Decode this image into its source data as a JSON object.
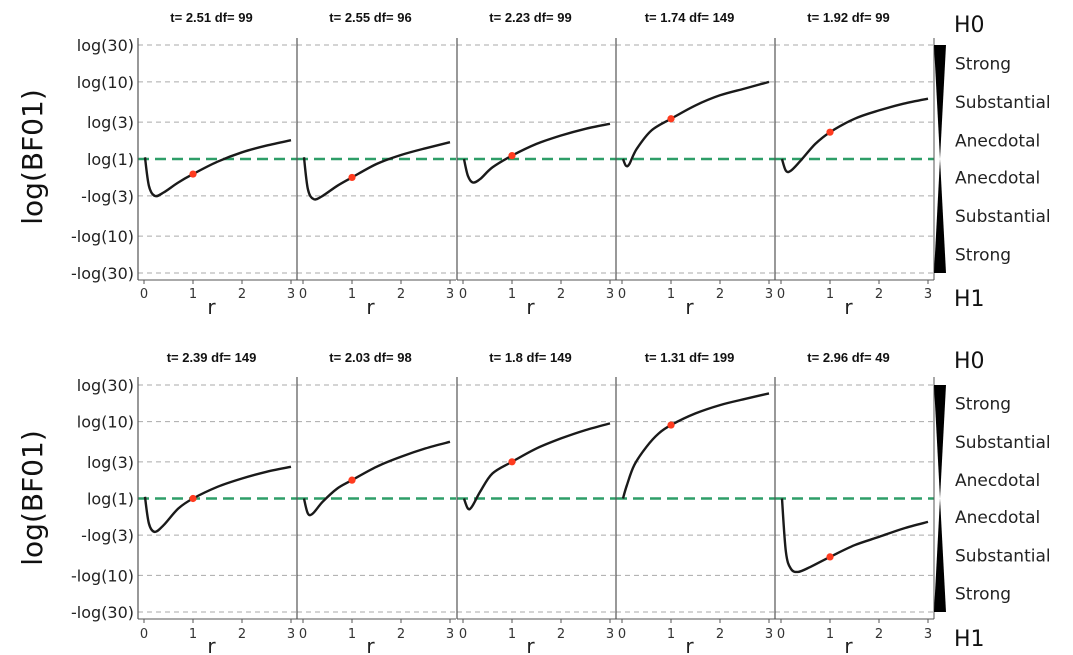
{
  "chart_data": [
    {
      "type": "line",
      "ylabel": "log(BF01)",
      "y_ticks": [
        "log(30)",
        "log(10)",
        "log(3)",
        "log(1)",
        "-log(3)",
        "-log(10)",
        "-log(30)"
      ],
      "x_ticks": [
        "0",
        "1",
        "2",
        "3"
      ],
      "xlim": [
        0,
        3
      ],
      "hypothesis_top": "H0",
      "hypothesis_bottom": "H1",
      "evidence_labels": [
        "Strong",
        "Substantial",
        "Anecdotal",
        "Anecdotal",
        "Substantial",
        "Strong"
      ],
      "panels": [
        {
          "title": "t= 2.51 df= 99",
          "xlabel": "r",
          "x": [
            0.02,
            0.1,
            0.22,
            0.4,
            0.7,
            1,
            1.5,
            2,
            2.5,
            3
          ],
          "y": [
            0.05,
            -0.8,
            -1.1,
            -1.0,
            -0.7,
            -0.45,
            -0.08,
            0.2,
            0.4,
            0.56
          ],
          "marker": {
            "x": 1,
            "y": -0.45
          }
        },
        {
          "title": "t= 2.55 df= 96",
          "xlabel": "r",
          "x": [
            0.02,
            0.1,
            0.22,
            0.4,
            0.7,
            1,
            1.5,
            2,
            2.5,
            3
          ],
          "y": [
            0.05,
            -0.9,
            -1.2,
            -1.1,
            -0.8,
            -0.55,
            -0.15,
            0.12,
            0.32,
            0.5
          ],
          "marker": {
            "x": 1,
            "y": -0.55
          }
        },
        {
          "title": "t= 2.23 df= 99",
          "xlabel": "r",
          "x": [
            0.02,
            0.1,
            0.2,
            0.35,
            0.6,
            1,
            1.5,
            2,
            2.5,
            3
          ],
          "y": [
            0.0,
            -0.5,
            -0.7,
            -0.6,
            -0.25,
            0.1,
            0.45,
            0.7,
            0.9,
            1.05
          ],
          "marker": {
            "x": 1,
            "y": 0.1
          }
        },
        {
          "title": "t= 1.74 df= 149",
          "xlabel": "r",
          "x": [
            0.02,
            0.08,
            0.15,
            0.3,
            0.6,
            1,
            1.5,
            2,
            2.5,
            3
          ],
          "y": [
            0.0,
            -0.2,
            -0.15,
            0.3,
            0.85,
            1.2,
            1.6,
            1.9,
            2.1,
            2.3
          ],
          "marker": {
            "x": 1,
            "y": 1.2
          }
        },
        {
          "title": "t= 1.92 df= 99",
          "xlabel": "r",
          "x": [
            0.02,
            0.1,
            0.2,
            0.4,
            0.7,
            1,
            1.5,
            2,
            2.5,
            3
          ],
          "y": [
            0.0,
            -0.35,
            -0.35,
            -0.05,
            0.45,
            0.8,
            1.2,
            1.45,
            1.65,
            1.8
          ],
          "marker": {
            "x": 1,
            "y": 0.8
          }
        },
        {
          "title": "t= 2.39 df= 149",
          "xlabel": "r",
          "x": [
            0.02,
            0.1,
            0.22,
            0.4,
            0.7,
            1,
            1.5,
            2,
            2.5,
            3
          ],
          "y": [
            0.05,
            -0.75,
            -1.0,
            -0.8,
            -0.3,
            0.0,
            0.35,
            0.6,
            0.8,
            0.95
          ],
          "marker": {
            "x": 1,
            "y": 0.0
          }
        },
        {
          "title": "t= 2.03 df= 98",
          "xlabel": "r",
          "x": [
            0.02,
            0.1,
            0.2,
            0.4,
            0.7,
            1,
            1.5,
            2,
            2.5,
            3
          ],
          "y": [
            0.0,
            -0.45,
            -0.45,
            -0.1,
            0.3,
            0.55,
            0.95,
            1.25,
            1.5,
            1.7
          ],
          "marker": {
            "x": 1,
            "y": 0.55
          }
        },
        {
          "title": "t= 1.8 df= 149",
          "xlabel": "r",
          "x": [
            0.02,
            0.1,
            0.18,
            0.35,
            0.6,
            1,
            1.5,
            2,
            2.5,
            3
          ],
          "y": [
            0.0,
            -0.3,
            -0.25,
            0.2,
            0.75,
            1.1,
            1.5,
            1.8,
            2.05,
            2.25
          ],
          "marker": {
            "x": 1,
            "y": 1.1
          }
        },
        {
          "title": "t= 1.31 df= 199",
          "xlabel": "r",
          "x": [
            0.02,
            0.1,
            0.25,
            0.5,
            0.75,
            1,
            1.5,
            2,
            2.5,
            3
          ],
          "y": [
            0.0,
            0.4,
            1.0,
            1.55,
            1.95,
            2.2,
            2.55,
            2.8,
            2.98,
            3.15
          ],
          "marker": {
            "x": 1,
            "y": 2.2
          }
        },
        {
          "title": "t= 2.96 df= 49",
          "xlabel": "r",
          "x": [
            0.02,
            0.1,
            0.2,
            0.35,
            0.6,
            1,
            1.5,
            2,
            2.5,
            3
          ],
          "y": [
            0.0,
            -1.6,
            -2.1,
            -2.2,
            -2.05,
            -1.75,
            -1.4,
            -1.15,
            -0.9,
            -0.7
          ],
          "marker": {
            "x": 1,
            "y": -1.75
          }
        }
      ]
    }
  ]
}
